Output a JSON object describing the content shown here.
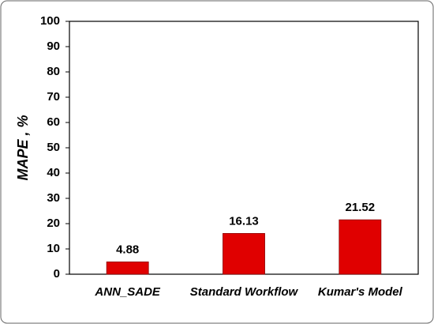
{
  "chart_data": {
    "type": "bar",
    "y_label": "MAPE , %",
    "categories": [
      "ANN_SADE",
      "Standard Workflow",
      "Kumar's Model"
    ],
    "values": [
      4.88,
      16.13,
      21.52
    ],
    "color": "#e00000",
    "ylim": [
      0,
      100
    ],
    "yticks": [
      0,
      10,
      20,
      30,
      40,
      50,
      60,
      70,
      80,
      90,
      100
    ],
    "grid": false
  }
}
